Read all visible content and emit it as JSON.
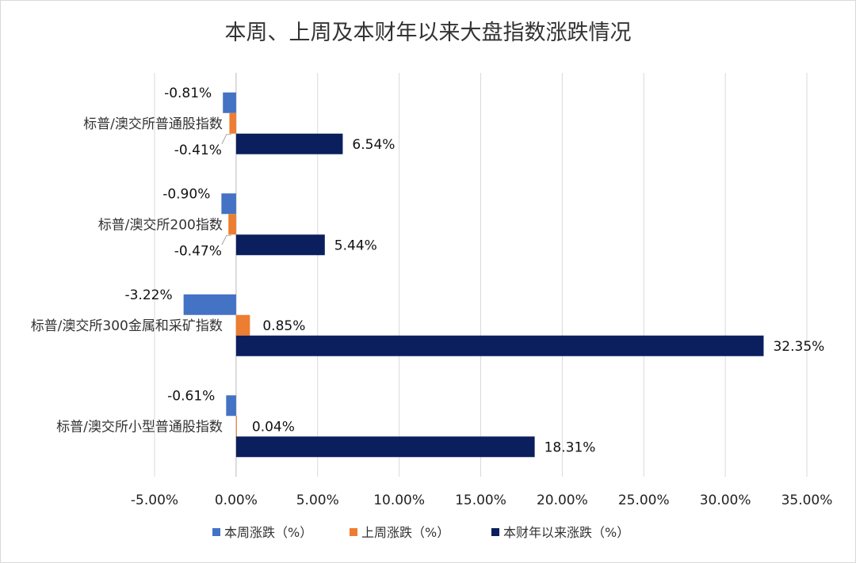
{
  "chart_data": {
    "type": "bar",
    "orientation": "horizontal",
    "title": "本周、上周及本财年以来大盘指数涨跌情况",
    "categories": [
      "标普/澳交所普通股指数",
      "标普/澳交所200指数",
      "标普/澳交所300金属和采矿指数",
      "标普/澳交所小型普通股指数"
    ],
    "series": [
      {
        "name": "本周涨跌（%）",
        "color": "#4472C4",
        "values": [
          -0.81,
          -0.9,
          -3.22,
          -0.61
        ],
        "labels": [
          "-0.81%",
          "-0.90%",
          "-3.22%",
          "-0.61%"
        ]
      },
      {
        "name": "上周涨跌（%）",
        "color": "#ED7D31",
        "values": [
          -0.41,
          -0.47,
          0.85,
          0.04
        ],
        "labels": [
          "-0.41%",
          "-0.47%",
          "0.85%",
          "0.04%"
        ]
      },
      {
        "name": "本财年以来涨跌（%）",
        "color": "#0B1F5E",
        "values": [
          6.54,
          5.44,
          32.35,
          18.31
        ],
        "labels": [
          "6.54%",
          "5.44%",
          "32.35%",
          "18.31%"
        ]
      }
    ],
    "xlim": [
      -5,
      35
    ],
    "xticks": [
      -5,
      0,
      5,
      10,
      15,
      20,
      25,
      30,
      35
    ],
    "xtick_labels": [
      "-5.00%",
      "0.00%",
      "5.00%",
      "10.00%",
      "15.00%",
      "20.00%",
      "25.00%",
      "30.00%",
      "35.00%"
    ],
    "grid": true,
    "legend_position": "bottom"
  }
}
